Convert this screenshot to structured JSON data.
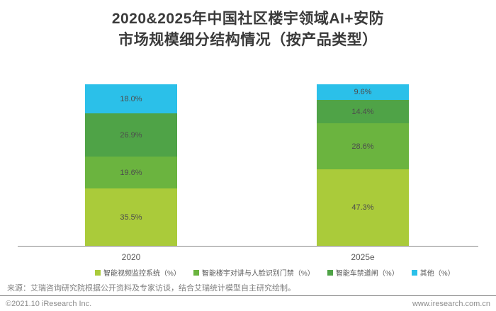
{
  "title": {
    "line1": "2020&2025年中国社区楼宇领域AI+安防",
    "line2": "市场规模细分结构情况（按产品类型）"
  },
  "chart_data": {
    "type": "bar",
    "subtype": "stacked",
    "categories": [
      "2020",
      "2025e"
    ],
    "series": [
      {
        "key": "video-surveillance",
        "name": "智能视频监控系统（%）",
        "color": "#AACB3A",
        "values": [
          35.5,
          47.3
        ]
      },
      {
        "key": "intercom-access",
        "name": "智能楼宇对讲与人脸识别门禁（%）",
        "color": "#6BB43F",
        "values": [
          19.6,
          28.6
        ]
      },
      {
        "key": "parking-barrier",
        "name": "智能车禁道闸（%）",
        "color": "#4FA347",
        "values": [
          26.9,
          14.4
        ]
      },
      {
        "key": "others",
        "name": "其他（%）",
        "color": "#2BC0E9",
        "values": [
          18.0,
          9.6
        ]
      }
    ],
    "stack_order": "bottom-to-top",
    "value_suffix": "%",
    "value_decimals": 1,
    "ylim": [
      0,
      100
    ],
    "grid": false,
    "legend_position": "bottom"
  },
  "source_note": "来源：艾瑞咨询研究院根据公开资料及专家访谈，结合艾瑞统计模型自主研究绘制。",
  "footer": {
    "left": "©2021.10 iResearch Inc.",
    "right": "www.iresearch.com.cn"
  },
  "colors": {
    "title_text": "#3A3A3A",
    "axis_line": "#8A8A8A",
    "category_label": "#595959",
    "segment_label": "#4D4D4D",
    "legend_text": "#595959",
    "source_text": "#7F7F7F",
    "footer_text": "#8C8C8C",
    "background": "#FFFFFF"
  }
}
